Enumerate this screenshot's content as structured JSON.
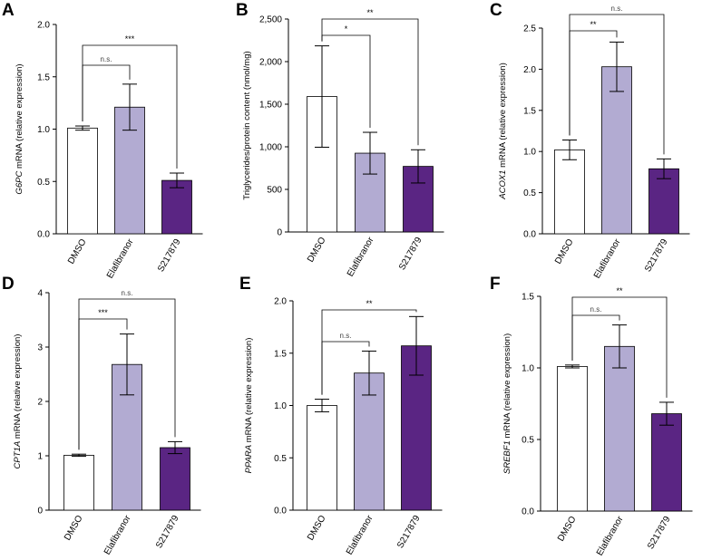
{
  "chart_data": [
    {
      "panel": "A",
      "type": "bar",
      "ylabel_gene": "G6PC",
      "ylabel_rest": " mRNA (relative expression)",
      "ylim": [
        0,
        2.0
      ],
      "ticks": [
        0,
        0.5,
        1.0,
        1.5,
        2.0
      ],
      "tick_labels": [
        "0.0",
        "0.5",
        "1.0",
        "1.5",
        "2.0"
      ],
      "categories": [
        "DMSO",
        "Elafibranor",
        "S217879"
      ],
      "values": [
        1.01,
        1.21,
        0.51
      ],
      "errors": [
        0.02,
        0.22,
        0.07
      ],
      "colors": [
        "#ffffff",
        "#b2abd2",
        "#5a2583"
      ],
      "significance": [
        {
          "from": 0,
          "to": 1,
          "label": "n.s."
        },
        {
          "from": 0,
          "to": 2,
          "label": "***"
        }
      ]
    },
    {
      "panel": "B",
      "type": "bar",
      "ylabel_gene": "",
      "ylabel_rest": "Triglycerides/protein content (nmol/mg)",
      "ylim": [
        0,
        2500
      ],
      "ticks": [
        0,
        500,
        1000,
        1500,
        2000,
        2500
      ],
      "tick_labels": [
        "0",
        "500",
        "1,000",
        "1,500",
        "2,000",
        "2,500"
      ],
      "categories": [
        "DMSO",
        "Elafibranor",
        "S217879"
      ],
      "values": [
        1590,
        925,
        770
      ],
      "errors": [
        595,
        245,
        195
      ],
      "colors": [
        "#ffffff",
        "#b2abd2",
        "#5a2583"
      ],
      "significance": [
        {
          "from": 0,
          "to": 1,
          "label": "*"
        },
        {
          "from": 0,
          "to": 2,
          "label": "**"
        }
      ]
    },
    {
      "panel": "C",
      "type": "bar",
      "ylabel_gene": "ACOX1",
      "ylabel_rest": " mRNA (relative expression)",
      "ylim": [
        0,
        2.5
      ],
      "ticks": [
        0,
        0.5,
        1.0,
        1.5,
        2.0,
        2.5
      ],
      "tick_labels": [
        "0.0",
        "0.5",
        "1.0",
        "1.5",
        "2.0",
        "2.5"
      ],
      "categories": [
        "DMSO",
        "Elafibranor",
        "S217879"
      ],
      "values": [
        1.02,
        2.03,
        0.79
      ],
      "errors": [
        0.12,
        0.3,
        0.12
      ],
      "colors": [
        "#ffffff",
        "#b2abd2",
        "#5a2583"
      ],
      "significance": [
        {
          "from": 0,
          "to": 1,
          "label": "**"
        },
        {
          "from": 0,
          "to": 2,
          "label": "n.s."
        }
      ]
    },
    {
      "panel": "D",
      "type": "bar",
      "ylabel_gene": "CPT1A",
      "ylabel_rest": " mRNA (relative expression)",
      "ylim": [
        0,
        4
      ],
      "ticks": [
        0,
        1,
        2,
        3,
        4
      ],
      "tick_labels": [
        "0",
        "1",
        "2",
        "3",
        "4"
      ],
      "categories": [
        "DMSO",
        "Elafibranor",
        "S217879"
      ],
      "values": [
        1.01,
        2.68,
        1.15
      ],
      "errors": [
        0.02,
        0.56,
        0.11
      ],
      "colors": [
        "#ffffff",
        "#b2abd2",
        "#5a2583"
      ],
      "significance": [
        {
          "from": 0,
          "to": 1,
          "label": "***"
        },
        {
          "from": 0,
          "to": 2,
          "label": "n.s."
        }
      ]
    },
    {
      "panel": "E",
      "type": "bar",
      "ylabel_gene": "PPARA",
      "ylabel_rest": " mRNA (relative expression)",
      "ylim": [
        0,
        2.0
      ],
      "ticks": [
        0,
        0.5,
        1.0,
        1.5,
        2.0
      ],
      "tick_labels": [
        "0.0",
        "0.5",
        "1.0",
        "1.5",
        "2.0"
      ],
      "categories": [
        "DMSO",
        "Elafibranor",
        "S217879"
      ],
      "values": [
        1.0,
        1.31,
        1.57
      ],
      "errors": [
        0.06,
        0.21,
        0.28
      ],
      "colors": [
        "#ffffff",
        "#b2abd2",
        "#5a2583"
      ],
      "significance": [
        {
          "from": 0,
          "to": 1,
          "label": "n.s."
        },
        {
          "from": 0,
          "to": 2,
          "label": "**"
        }
      ]
    },
    {
      "panel": "F",
      "type": "bar",
      "ylabel_gene": "SREBF1",
      "ylabel_rest": " mRNA (relative expression)",
      "ylim": [
        0,
        1.5
      ],
      "ticks": [
        0,
        0.5,
        1.0,
        1.5
      ],
      "tick_labels": [
        "0.0",
        "0.5",
        "1.0",
        "1.5"
      ],
      "categories": [
        "DMSO",
        "Elafibranor",
        "S217879"
      ],
      "values": [
        1.01,
        1.15,
        0.68
      ],
      "errors": [
        0.01,
        0.15,
        0.08
      ],
      "colors": [
        "#ffffff",
        "#b2abd2",
        "#5a2583"
      ],
      "significance": [
        {
          "from": 0,
          "to": 1,
          "label": "n.s."
        },
        {
          "from": 0,
          "to": 2,
          "label": "**"
        }
      ]
    }
  ]
}
